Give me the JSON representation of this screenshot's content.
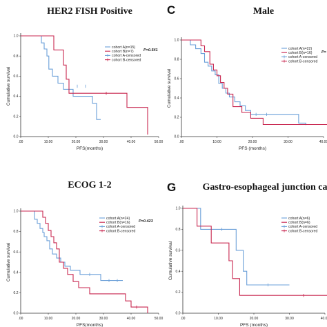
{
  "colors": {
    "cohort_a": "#6a9fd8",
    "cohort_b": "#c8264f",
    "axis": "#333333"
  },
  "chart_data": [
    {
      "type": "line",
      "panel_letter": "",
      "title": "HER2 FISH Positive",
      "xlabel": "PFS(months)",
      "ylabel": "Cumulative survival",
      "xlim": [
        0,
        50
      ],
      "ylim": [
        0,
        1
      ],
      "xticks": [
        ".00",
        "10.00",
        "20.00",
        "30.00",
        "40.00",
        "50.00"
      ],
      "yticks": [
        "0.0",
        "0.2",
        "0.4",
        "0.6",
        "0.8",
        "1.0"
      ],
      "p_value": "P=0.541",
      "legend": [
        "cohort A(n=15)",
        "cohort B(n=7)",
        "cohort A-censored",
        "cohort B-censored"
      ],
      "series": [
        {
          "name": "cohort A(n=15)",
          "steps": [
            [
              0,
              1.0
            ],
            [
              7.5,
              0.93
            ],
            [
              8.5,
              0.87
            ],
            [
              9.5,
              0.8
            ],
            [
              10.2,
              0.67
            ],
            [
              11.5,
              0.6
            ],
            [
              13.5,
              0.53
            ],
            [
              15.5,
              0.47
            ],
            [
              19,
              0.4
            ],
            [
              26,
              0.33
            ],
            [
              27.5,
              0.17
            ],
            [
              29,
              0.17
            ]
          ],
          "censored": [
            [
              20.5,
              0.5
            ],
            [
              23.5,
              0.5
            ]
          ]
        },
        {
          "name": "cohort B(n=7)",
          "steps": [
            [
              0,
              1.0
            ],
            [
              12,
              0.86
            ],
            [
              15.5,
              0.71
            ],
            [
              16.5,
              0.57
            ],
            [
              17.5,
              0.43
            ],
            [
              38.5,
              0.29
            ],
            [
              46,
              0.02
            ]
          ],
          "censored": [
            [
              31,
              0.43
            ]
          ]
        }
      ]
    },
    {
      "type": "line",
      "panel_letter": "C",
      "title": "Male",
      "xlabel": "PFS (months)",
      "ylabel": "Cumulative survival",
      "xlim": [
        0,
        40
      ],
      "ylim": [
        0,
        1
      ],
      "xticks": [
        ".00",
        "10.00",
        "20.00",
        "30.00",
        "40.00"
      ],
      "yticks": [
        "0.0",
        "0.2",
        "0.4",
        "0.6",
        "0.8",
        "1.0"
      ],
      "p_value": "P=",
      "legend": [
        "cohort A(n=22)",
        "cohort B(n=16)",
        "cohort A-censored",
        "cohort B-censored"
      ],
      "series": [
        {
          "name": "cohort A(n=22)",
          "steps": [
            [
              0,
              1.0
            ],
            [
              2.5,
              0.95
            ],
            [
              4,
              0.91
            ],
            [
              5.5,
              0.86
            ],
            [
              6.5,
              0.77
            ],
            [
              7.5,
              0.73
            ],
            [
              8.5,
              0.68
            ],
            [
              9.5,
              0.64
            ],
            [
              10.5,
              0.55
            ],
            [
              11.5,
              0.5
            ],
            [
              12.5,
              0.45
            ],
            [
              13.5,
              0.41
            ],
            [
              15,
              0.36
            ],
            [
              16.5,
              0.32
            ],
            [
              18,
              0.27
            ],
            [
              19.5,
              0.23
            ],
            [
              33,
              0.14
            ],
            [
              35,
              0.12
            ]
          ],
          "censored": [
            [
              21,
              0.23
            ],
            [
              24,
              0.23
            ]
          ]
        },
        {
          "name": "cohort B(n=16)",
          "steps": [
            [
              0,
              1.0
            ],
            [
              5.5,
              0.94
            ],
            [
              6.5,
              0.88
            ],
            [
              8,
              0.75
            ],
            [
              9,
              0.69
            ],
            [
              10,
              0.63
            ],
            [
              11,
              0.56
            ],
            [
              12,
              0.5
            ],
            [
              13,
              0.44
            ],
            [
              14.5,
              0.31
            ],
            [
              17,
              0.25
            ],
            [
              19.5,
              0.19
            ],
            [
              23,
              0.125
            ],
            [
              42,
              0.125
            ]
          ],
          "censored": []
        }
      ]
    },
    {
      "type": "line",
      "panel_letter": "",
      "title": "ECOG 1-2",
      "xlabel": "PFS(months)",
      "ylabel": "Cumulative survival",
      "xlim": [
        0,
        50
      ],
      "ylim": [
        0,
        1
      ],
      "xticks": [
        ".00",
        "10.00",
        "20.00",
        "30.00",
        "40.00",
        "50.00"
      ],
      "yticks": [
        "0.0",
        "0.2",
        "0.4",
        "0.6",
        "0.8",
        "1.0"
      ],
      "p_value": "P=0.423",
      "legend": [
        "cohort A(n=24)",
        "cohort B(n=16)",
        "cohort A-censored",
        "cohort B-censored"
      ],
      "series": [
        {
          "name": "cohort A(n=24)",
          "steps": [
            [
              0,
              1.0
            ],
            [
              5,
              0.92
            ],
            [
              6,
              0.88
            ],
            [
              7,
              0.83
            ],
            [
              8,
              0.79
            ],
            [
              8.5,
              0.75
            ],
            [
              9.5,
              0.71
            ],
            [
              10.5,
              0.63
            ],
            [
              11.5,
              0.58
            ],
            [
              13,
              0.54
            ],
            [
              14.5,
              0.5
            ],
            [
              16,
              0.46
            ],
            [
              18,
              0.42
            ],
            [
              21.5,
              0.38
            ],
            [
              29,
              0.32
            ],
            [
              37,
              0.32
            ]
          ],
          "censored": [
            [
              25,
              0.38
            ],
            [
              32,
              0.32
            ],
            [
              35,
              0.32
            ]
          ]
        },
        {
          "name": "cohort B(n=16)",
          "steps": [
            [
              0,
              1.0
            ],
            [
              8,
              0.94
            ],
            [
              9,
              0.88
            ],
            [
              10,
              0.81
            ],
            [
              11,
              0.75
            ],
            [
              12,
              0.69
            ],
            [
              13,
              0.63
            ],
            [
              14,
              0.5
            ],
            [
              15.5,
              0.44
            ],
            [
              17,
              0.38
            ],
            [
              19,
              0.31
            ],
            [
              21,
              0.25
            ],
            [
              25,
              0.19
            ],
            [
              38,
              0.12
            ],
            [
              40,
              0.06
            ],
            [
              46,
              0.0
            ]
          ],
          "censored": [
            [
              42,
              0.06
            ]
          ]
        }
      ]
    },
    {
      "type": "line",
      "panel_letter": "G",
      "title": "Gastro-esophageal junction ca",
      "xlabel": "PFS (months)",
      "ylabel": "Cumulative survival",
      "xlim": [
        0,
        40
      ],
      "ylim": [
        0,
        1
      ],
      "xticks": [
        ".00",
        "10.00",
        "20.00",
        "30.00",
        "40.00"
      ],
      "yticks": [
        "0.0",
        "0.2",
        "0.4",
        "0.6",
        "0.8",
        "1.0"
      ],
      "p_value": "",
      "legend": [
        "cohort A(n=6)",
        "cohort B(n=6)",
        "cohort A-censored",
        "cohort B-censored"
      ],
      "series": [
        {
          "name": "cohort A(n=6)",
          "steps": [
            [
              0,
              1.0
            ],
            [
              5,
              0.8
            ],
            [
              15,
              0.6
            ],
            [
              17,
              0.4
            ],
            [
              18,
              0.27
            ],
            [
              30,
              0.27
            ]
          ],
          "censored": [
            [
              11,
              0.8
            ],
            [
              24,
              0.27
            ]
          ]
        },
        {
          "name": "cohort B(n=6)",
          "steps": [
            [
              0,
              1.0
            ],
            [
              4,
              0.83
            ],
            [
              8,
              0.67
            ],
            [
              13,
              0.5
            ],
            [
              14,
              0.33
            ],
            [
              16,
              0.17
            ],
            [
              41,
              0.0
            ]
          ],
          "censored": [
            [
              34,
              0.17
            ]
          ]
        }
      ]
    }
  ]
}
